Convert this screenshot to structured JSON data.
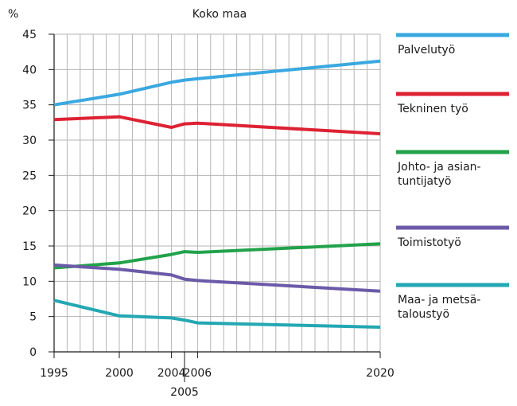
{
  "chart_data": {
    "type": "line",
    "title": "Koko maa",
    "ylabel": "%",
    "xlabel": "",
    "ylim": [
      0,
      45
    ],
    "yticks": [
      "0",
      "5",
      "10",
      "15",
      "20",
      "25",
      "30",
      "35",
      "40",
      "45"
    ],
    "xlim": [
      1995,
      2020
    ],
    "xticks": [
      {
        "value": 1995,
        "label": "1995"
      },
      {
        "value": 2000,
        "label": "2000"
      },
      {
        "value": 2004,
        "label": "2004"
      },
      {
        "value": 2005,
        "label": "2005",
        "below": true
      },
      {
        "value": 2006,
        "label": "2006"
      },
      {
        "value": 2020,
        "label": "2020"
      }
    ],
    "grid": true,
    "legend_position": "right",
    "series": [
      {
        "name": "Palvelutyö",
        "color": "#3aa8e0",
        "points": [
          [
            1995,
            35.0
          ],
          [
            2000,
            36.5
          ],
          [
            2004,
            38.2
          ],
          [
            2005,
            38.5
          ],
          [
            2006,
            38.7
          ],
          [
            2020,
            41.2
          ]
        ]
      },
      {
        "name": "Tekninen työ",
        "color": "#dd2233",
        "points": [
          [
            1995,
            32.9
          ],
          [
            2000,
            33.3
          ],
          [
            2004,
            31.8
          ],
          [
            2005,
            32.3
          ],
          [
            2006,
            32.4
          ],
          [
            2020,
            30.9
          ]
        ]
      },
      {
        "name": "Johto- ja asian-\ntuntijatyö",
        "color": "#22a24a",
        "points": [
          [
            1995,
            11.9
          ],
          [
            2000,
            12.6
          ],
          [
            2004,
            13.8
          ],
          [
            2005,
            14.2
          ],
          [
            2006,
            14.1
          ],
          [
            2020,
            15.3
          ]
        ]
      },
      {
        "name": "Toimistotyö",
        "color": "#6b5aa8",
        "points": [
          [
            1995,
            12.3
          ],
          [
            2000,
            11.7
          ],
          [
            2004,
            10.9
          ],
          [
            2005,
            10.3
          ],
          [
            2006,
            10.1
          ],
          [
            2020,
            8.6
          ]
        ]
      },
      {
        "name": "Maa- ja metsä-\ntaloustyö",
        "color": "#23a7b3",
        "points": [
          [
            1995,
            7.3
          ],
          [
            2000,
            5.1
          ],
          [
            2004,
            4.8
          ],
          [
            2005,
            4.5
          ],
          [
            2006,
            4.1
          ],
          [
            2020,
            3.5
          ]
        ]
      }
    ]
  }
}
